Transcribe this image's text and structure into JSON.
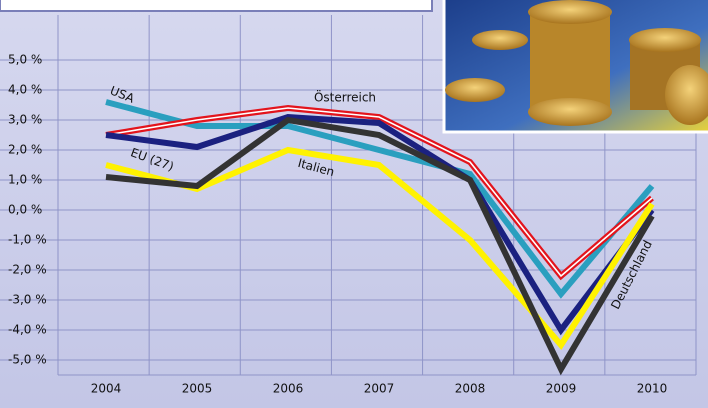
{
  "chart_data": {
    "type": "line",
    "categories": [
      "2004",
      "2005",
      "2006",
      "2007",
      "2008",
      "2009",
      "2010"
    ],
    "series": [
      {
        "name": "USA",
        "color": "#2a9fbf",
        "values": [
          3.6,
          2.8,
          2.8,
          2.0,
          1.2,
          -2.8,
          0.8
        ]
      },
      {
        "name": "Österreich",
        "color": "#e3141c",
        "stripe_color": "#ffffff",
        "values": [
          2.5,
          3.0,
          3.4,
          3.1,
          1.6,
          -2.2,
          0.4
        ]
      },
      {
        "name": "EU (27)",
        "color": "#1b2180",
        "values": [
          2.5,
          2.1,
          3.1,
          2.9,
          1.0,
          -4.0,
          0.0
        ]
      },
      {
        "name": "Italien",
        "color": "#fff200",
        "values": [
          1.5,
          0.7,
          2.0,
          1.5,
          -1.0,
          -4.5,
          0.2
        ]
      },
      {
        "name": "Deutschland",
        "color": "#333333",
        "values": [
          1.1,
          0.8,
          3.0,
          2.5,
          1.0,
          -5.3,
          -0.2
        ]
      }
    ],
    "ylim": [
      -5.5,
      6.5
    ],
    "yticks": [
      {
        "value": -5,
        "label": "-5,0 %"
      },
      {
        "value": -4,
        "label": "-4,0 %"
      },
      {
        "value": -3,
        "label": "-3,0 %"
      },
      {
        "value": -2,
        "label": "-2,0 %"
      },
      {
        "value": -1,
        "label": "-1,0 %"
      },
      {
        "value": 0,
        "label": "0,0 %"
      },
      {
        "value": 1,
        "label": "1,0 %"
      },
      {
        "value": 2,
        "label": "2,0 %"
      },
      {
        "value": 3,
        "label": "3,0 %"
      },
      {
        "value": 4,
        "label": "4,0 %"
      },
      {
        "value": 5,
        "label": "5,0 %"
      }
    ],
    "grid": true
  }
}
